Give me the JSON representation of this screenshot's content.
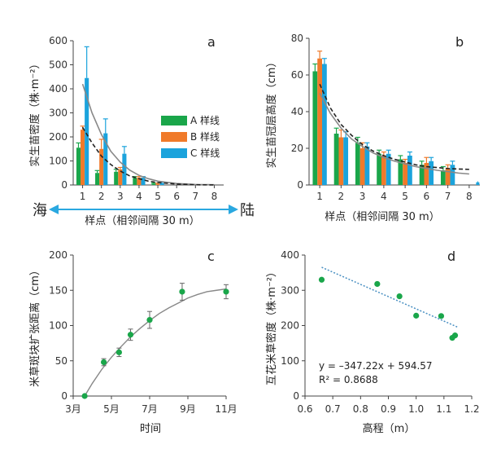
{
  "chart_data": [
    {
      "type": "bar",
      "panel": "a",
      "ylabel": "实生苗密度（株·m⁻²）",
      "xlabel": "样点（相邻间隔 30 m）",
      "xlim": [
        0.5,
        8.5
      ],
      "ylim": [
        0,
        600
      ],
      "yticks": [
        0,
        100,
        200,
        300,
        400,
        500,
        600
      ],
      "categories": [
        "1",
        "2",
        "3",
        "4",
        "5",
        "6",
        "7",
        "8"
      ],
      "arrow_left": "海",
      "arrow_right": "陆",
      "series": [
        {
          "name": "A 样线",
          "color": "#1aa64a",
          "values": [
            155,
            50,
            55,
            30,
            5,
            0,
            0,
            0
          ],
          "errors": [
            20,
            10,
            10,
            5,
            3,
            0,
            0,
            0
          ]
        },
        {
          "name": "B 样线",
          "color": "#f07a2a",
          "values": [
            230,
            150,
            65,
            30,
            5,
            0,
            0,
            0
          ],
          "errors": [
            15,
            40,
            8,
            5,
            3,
            0,
            0,
            0
          ]
        },
        {
          "name": "C 样线",
          "color": "#1ba3dc",
          "values": [
            445,
            215,
            130,
            30,
            8,
            0,
            0,
            0
          ],
          "errors": [
            130,
            60,
            30,
            5,
            4,
            0,
            0,
            0
          ]
        }
      ],
      "curves": [
        {
          "x": [
            1,
            1.5,
            2,
            2.5,
            3,
            3.5,
            4,
            4.5,
            5,
            6,
            7,
            8
          ],
          "y": [
            420,
            300,
            210,
            140,
            95,
            62,
            40,
            26,
            16,
            6,
            2,
            1
          ],
          "style": "solid",
          "color": "#888888"
        },
        {
          "x": [
            1,
            1.5,
            2,
            2.5,
            3,
            3.5,
            4,
            4.5,
            5,
            6,
            7,
            8
          ],
          "y": [
            240,
            175,
            120,
            85,
            58,
            38,
            26,
            16,
            10,
            4,
            1,
            0
          ],
          "style": "dashed",
          "color": "#222222"
        }
      ]
    },
    {
      "type": "bar",
      "panel": "b",
      "ylabel": "实生苗冠层高度（cm）",
      "xlabel": "样点（相邻间隔 30 m）",
      "xlim": [
        0.5,
        8.5
      ],
      "ylim": [
        0,
        80
      ],
      "yticks": [
        0,
        20,
        40,
        60,
        80
      ],
      "categories": [
        "1",
        "2",
        "3",
        "4",
        "5",
        "6",
        "7",
        "8"
      ],
      "series": [
        {
          "name": "A 样线",
          "color": "#1aa64a",
          "values": [
            62,
            28,
            23,
            17,
            14,
            11,
            8,
            0
          ],
          "errors": [
            4,
            3,
            3,
            2,
            2,
            2,
            2,
            0
          ]
        },
        {
          "name": "B 样线",
          "color": "#f07a2a",
          "values": [
            69,
            26,
            20,
            16,
            12,
            12,
            9,
            0
          ],
          "errors": [
            4,
            4,
            3,
            2,
            2,
            3,
            2,
            0
          ]
        },
        {
          "name": "C 样线",
          "color": "#1ba3dc",
          "values": [
            66,
            26,
            21,
            17,
            16,
            13,
            11,
            0
          ],
          "errors": [
            3,
            3,
            2,
            2,
            2,
            2,
            2,
            0
          ]
        }
      ],
      "extra_points": [
        {
          "x": 8.4,
          "y": 1,
          "error": 1,
          "color": "#1ba3dc"
        }
      ],
      "curves": [
        {
          "x": [
            1,
            1.5,
            2,
            2.5,
            3,
            3.5,
            4,
            4.5,
            5,
            5.5,
            6,
            6.5,
            7,
            7.5,
            8
          ],
          "y": [
            55,
            42,
            33,
            27,
            22,
            18.5,
            16,
            14,
            12.5,
            11,
            10,
            9.5,
            9,
            8.7,
            8.5
          ],
          "style": "dashed",
          "color": "#222222"
        },
        {
          "x": [
            1,
            1.5,
            2,
            2.5,
            3,
            3.5,
            4,
            4.5,
            5,
            5.5,
            6,
            6.5,
            7,
            7.5,
            8
          ],
          "y": [
            50,
            39,
            31,
            25,
            21,
            17.5,
            15,
            13,
            11.5,
            10,
            9,
            8,
            7.3,
            6.5,
            6
          ],
          "style": "solid",
          "color": "#888888"
        }
      ]
    },
    {
      "type": "scatter",
      "panel": "c",
      "ylabel": "米草斑块扩张距离（cm）",
      "xlabel": "时间",
      "xlim": [
        3,
        11
      ],
      "ylim": [
        0,
        200
      ],
      "xticks": [
        3,
        5,
        7,
        9,
        11
      ],
      "xticklabels": [
        "3月",
        "5月",
        "7月",
        "9月",
        "11月"
      ],
      "yticks": [
        0,
        50,
        100,
        150,
        200
      ],
      "x": [
        3.6,
        4.6,
        5.4,
        6.0,
        7.0,
        8.7,
        11.0
      ],
      "y": [
        0,
        48,
        62,
        87,
        108,
        148,
        148
      ],
      "errors": [
        0,
        5,
        6,
        8,
        12,
        12,
        10
      ],
      "color": "#1aa64a",
      "curve": {
        "x": [
          3.6,
          4,
          4.5,
          5,
          5.5,
          6,
          6.5,
          7,
          7.5,
          8,
          8.5,
          9,
          9.5,
          10,
          10.5,
          11
        ],
        "y": [
          0,
          18,
          38,
          55,
          70,
          84,
          96,
          107,
          117,
          125,
          132,
          139,
          144,
          148,
          150,
          152
        ],
        "color": "#888888"
      }
    },
    {
      "type": "scatter",
      "panel": "d",
      "ylabel": "互花米草密度（株·m⁻²）",
      "xlabel": "高程（m）",
      "xlim": [
        0.6,
        1.2
      ],
      "ylim": [
        0,
        400
      ],
      "xticks": [
        0.6,
        0.7,
        0.8,
        0.9,
        1.0,
        1.1,
        1.2
      ],
      "yticks": [
        0,
        100,
        200,
        300,
        400
      ],
      "x": [
        0.66,
        0.86,
        0.94,
        1.0,
        1.09,
        1.13,
        1.14
      ],
      "y": [
        330,
        318,
        283,
        228,
        227,
        165,
        172
      ],
      "color": "#1aa64a",
      "trendline": {
        "slope": -347.22,
        "intercept": 594.57,
        "x_from": 0.66,
        "x_to": 1.15,
        "color": "#4a90c2"
      },
      "equation": "y = –347.22x + 594.57",
      "r2_label": "R² = 0.8688"
    }
  ]
}
